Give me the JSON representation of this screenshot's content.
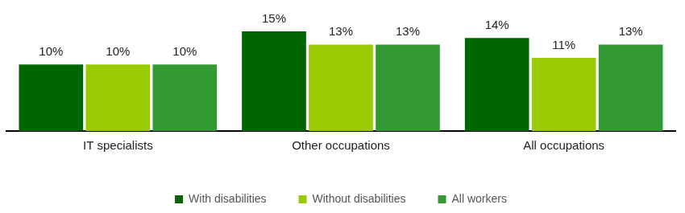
{
  "chart_data": {
    "type": "bar",
    "categories": [
      "IT specialists",
      "Other occupations",
      "All occupations"
    ],
    "series": [
      {
        "name": "With disabilities",
        "color": "#006600",
        "values": [
          10,
          15,
          14
        ],
        "value_labels": [
          "10%",
          "15%",
          "14%"
        ]
      },
      {
        "name": "Without disabilities",
        "color": "#99cc00",
        "values": [
          10,
          13,
          11
        ],
        "value_labels": [
          "10%",
          "13%",
          "11%"
        ]
      },
      {
        "name": "All workers",
        "color": "#339933",
        "values": [
          10,
          13,
          13
        ],
        "value_labels": [
          "10%",
          "13%",
          "13%"
        ]
      }
    ],
    "ylim": [
      0,
      19
    ],
    "grid": false,
    "legend": "bottom",
    "data_labels": true,
    "tick_labels": "x"
  }
}
